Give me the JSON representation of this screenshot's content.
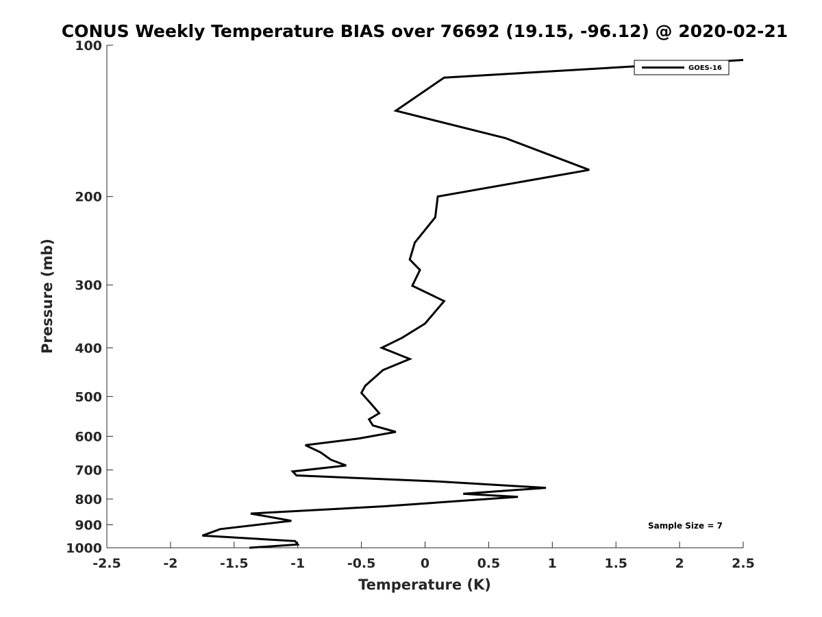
{
  "chart_data": {
    "type": "line",
    "title": "CONUS Weekly Temperature BIAS over 76692 (19.15, -96.12) @ 2020-02-21",
    "xlabel": "Temperature (K)",
    "ylabel": "Pressure (mb)",
    "xlim": [
      -2.5,
      2.5
    ],
    "ylim": [
      1000,
      100
    ],
    "yscale": "log",
    "y_reversed": true,
    "grid": false,
    "legend_position": "top-right",
    "x_ticks": [
      -2.5,
      -2,
      -1.5,
      -1,
      -0.5,
      0,
      0.5,
      1,
      1.5,
      2,
      2.5
    ],
    "x_tick_labels": [
      "-2.5",
      "-2",
      "-1.5",
      "-1",
      "-0.5",
      "0",
      "0.5",
      "1",
      "1.5",
      "2",
      "2.5"
    ],
    "y_ticks": [
      100,
      200,
      300,
      400,
      500,
      600,
      700,
      800,
      900,
      1000
    ],
    "y_tick_labels": [
      "100",
      "200",
      "300",
      "400",
      "500",
      "600",
      "700",
      "800",
      "900",
      "1000"
    ],
    "series": [
      {
        "name": "GOES-16",
        "color": "#000000",
        "points": [
          {
            "x": 2.5,
            "y": 107
          },
          {
            "x": 0.15,
            "y": 116
          },
          {
            "x": -0.23,
            "y": 135
          },
          {
            "x": 0.63,
            "y": 153
          },
          {
            "x": 1.29,
            "y": 177
          },
          {
            "x": 0.1,
            "y": 200
          },
          {
            "x": 0.08,
            "y": 220
          },
          {
            "x": -0.08,
            "y": 247
          },
          {
            "x": -0.12,
            "y": 267
          },
          {
            "x": -0.04,
            "y": 280
          },
          {
            "x": -0.1,
            "y": 301
          },
          {
            "x": 0.15,
            "y": 323
          },
          {
            "x": 0.0,
            "y": 358
          },
          {
            "x": -0.18,
            "y": 382
          },
          {
            "x": -0.34,
            "y": 400
          },
          {
            "x": -0.12,
            "y": 421
          },
          {
            "x": -0.33,
            "y": 443
          },
          {
            "x": -0.47,
            "y": 476
          },
          {
            "x": -0.5,
            "y": 492
          },
          {
            "x": -0.43,
            "y": 515
          },
          {
            "x": -0.36,
            "y": 540
          },
          {
            "x": -0.44,
            "y": 555
          },
          {
            "x": -0.41,
            "y": 571
          },
          {
            "x": -0.23,
            "y": 588
          },
          {
            "x": -0.52,
            "y": 606
          },
          {
            "x": -0.94,
            "y": 625
          },
          {
            "x": -0.82,
            "y": 646
          },
          {
            "x": -0.74,
            "y": 668
          },
          {
            "x": -0.62,
            "y": 686
          },
          {
            "x": -1.04,
            "y": 705
          },
          {
            "x": -1.01,
            "y": 718
          },
          {
            "x": 0.1,
            "y": 738
          },
          {
            "x": 0.95,
            "y": 760
          },
          {
            "x": 0.3,
            "y": 781
          },
          {
            "x": 0.73,
            "y": 792
          },
          {
            "x": -0.32,
            "y": 827
          },
          {
            "x": -1.37,
            "y": 855
          },
          {
            "x": -1.05,
            "y": 884
          },
          {
            "x": -1.61,
            "y": 918
          },
          {
            "x": -1.75,
            "y": 946
          },
          {
            "x": -1.02,
            "y": 970
          },
          {
            "x": -1.0,
            "y": 985
          },
          {
            "x": -1.38,
            "y": 1000
          }
        ]
      }
    ],
    "annotations": [
      "Sample Size = 7"
    ]
  }
}
